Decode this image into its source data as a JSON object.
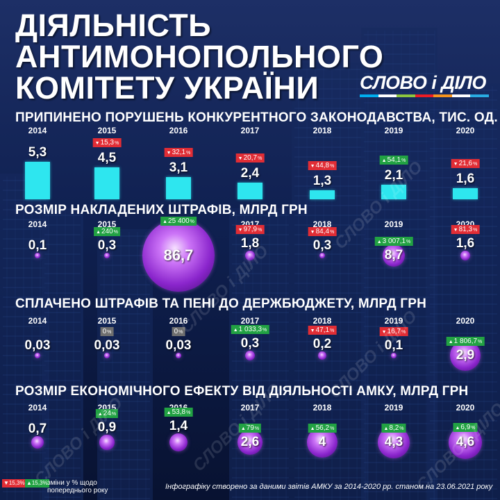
{
  "title": {
    "lines": [
      "ДІЯЛЬНІСТЬ",
      "АНТИМОНОПОЛЬНОГО",
      "КОМІТЕТУ УКРАЇНИ"
    ]
  },
  "logo": {
    "text": "СЛОВО і ДІЛО",
    "bar_colors": [
      "#00aeef",
      "#ffffff",
      "#8dc63f",
      "#ed1c24",
      "#f7941d",
      "#ffffff",
      "#29abe2"
    ]
  },
  "colors": {
    "background": "#0b1a3c",
    "bar": "#2ee6ef",
    "bubble": "#a53de0",
    "up": "#22a243",
    "down": "#e12d35",
    "zero": "#6f6f6f"
  },
  "chart_data": [
    {
      "type": "bar",
      "title": "ПРИПИНЕНО ПОРУШЕНЬ КОНКУРЕНТНОГО ЗАКОНОДАВСТВА, ТИС. ОД.",
      "categories": [
        "2014",
        "2015",
        "2016",
        "2017",
        "2018",
        "2019",
        "2020"
      ],
      "values": [
        5.3,
        4.5,
        3.1,
        2.4,
        1.3,
        2.1,
        1.6
      ],
      "labels": [
        "5,3",
        "4,5",
        "3,1",
        "2,4",
        "1,3",
        "2,1",
        "1,6"
      ],
      "changes": [
        null,
        {
          "dir": "down",
          "value": "15,3"
        },
        {
          "dir": "down",
          "value": "32,1"
        },
        {
          "dir": "down",
          "value": "20,7"
        },
        {
          "dir": "down",
          "value": "44,8"
        },
        {
          "dir": "up",
          "value": "54,1"
        },
        {
          "dir": "down",
          "value": "21,6"
        }
      ]
    },
    {
      "type": "bubble",
      "title": "РОЗМІР НАКЛАДЕНИХ ШТРАФІВ, МЛРД ГРН",
      "categories": [
        "2014",
        "2015",
        "2016",
        "2017",
        "2018",
        "2019",
        "2020"
      ],
      "values": [
        0.1,
        0.3,
        86.7,
        1.8,
        0.3,
        8.7,
        1.6
      ],
      "labels": [
        "0,1",
        "0,3",
        "86,7",
        "1,8",
        "0,3",
        "8,7",
        "1,6"
      ],
      "changes": [
        null,
        {
          "dir": "up",
          "value": "240"
        },
        {
          "dir": "up",
          "value": "25 400"
        },
        {
          "dir": "down",
          "value": "97,9"
        },
        {
          "dir": "down",
          "value": "84,4"
        },
        {
          "dir": "up",
          "value": "3 007,1"
        },
        {
          "dir": "down",
          "value": "81,3"
        }
      ]
    },
    {
      "type": "bubble",
      "title": "СПЛАЧЕНО ШТРАФІВ ТА ПЕНІ ДО ДЕРЖБЮДЖЕТУ, МЛРД ГРН",
      "categories": [
        "2014",
        "2015",
        "2016",
        "2017",
        "2018",
        "2019",
        "2020"
      ],
      "values": [
        0.03,
        0.03,
        0.03,
        0.3,
        0.2,
        0.1,
        2.9
      ],
      "labels": [
        "0,03",
        "0,03",
        "0,03",
        "0,3",
        "0,2",
        "0,1",
        "2,9"
      ],
      "changes": [
        null,
        {
          "dir": "zero",
          "value": "0"
        },
        {
          "dir": "zero",
          "value": "0"
        },
        {
          "dir": "up",
          "value": "1 033,3"
        },
        {
          "dir": "down",
          "value": "47,1"
        },
        {
          "dir": "down",
          "value": "16,7"
        },
        {
          "dir": "up",
          "value": "1 806,7"
        }
      ]
    },
    {
      "type": "bubble",
      "title": "РОЗМІР ЕКОНОМІЧНОГО ЕФЕКТУ ВІД ДІЯЛЬНОСТІ АМКУ, МЛРД ГРН",
      "categories": [
        "2014",
        "2015",
        "2016",
        "2017",
        "2018",
        "2019",
        "2020"
      ],
      "values": [
        0.7,
        0.9,
        1.4,
        2.6,
        4,
        4.3,
        4.6
      ],
      "labels": [
        "0,7",
        "0,9",
        "1,4",
        "2,6",
        "4",
        "4,3",
        "4,6"
      ],
      "changes": [
        null,
        {
          "dir": "up",
          "value": "24"
        },
        {
          "dir": "up",
          "value": "53,8"
        },
        {
          "dir": "up",
          "value": "79"
        },
        {
          "dir": "up",
          "value": "56,2"
        },
        {
          "dir": "up",
          "value": "8,2"
        },
        {
          "dir": "up",
          "value": "6,9"
        }
      ]
    }
  ],
  "legend": {
    "down_sample": "15,3",
    "up_sample": "15,3",
    "text": "зміни у % щодо\nпопереднього року"
  },
  "footer": "Інфографіку створено за даними звітів АМКУ за 2014-2020 рр. станом на 23.06.2021 року",
  "watermark": "СЛОВО і ДІЛО"
}
